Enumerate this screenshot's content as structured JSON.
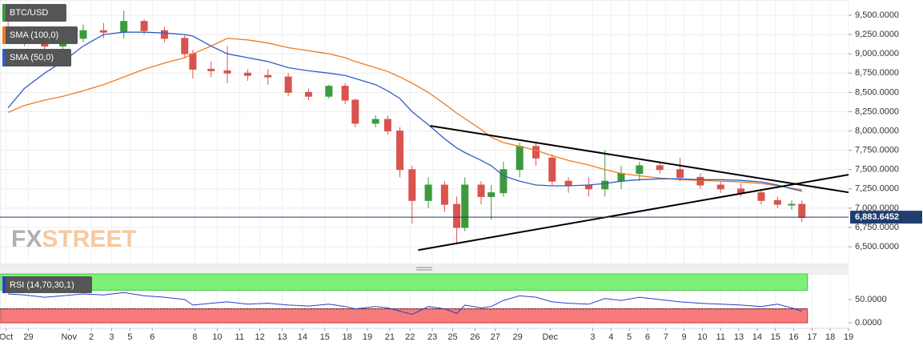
{
  "chart_data": {
    "type": "candlestick",
    "name": "BTC/USD",
    "up_color": "#3c9a3c",
    "down_color": "#d9534f",
    "x": [
      0.1,
      0.9,
      1.9,
      2.8,
      3.8,
      4.8,
      5.8,
      6.8,
      7.8,
      8.8,
      9.2,
      10.1,
      10.9,
      11.9,
      12.9,
      13.9,
      14.9,
      15.9,
      16.7,
      17.2,
      18.2,
      18.8,
      19.4,
      20.0,
      20.8,
      21.6,
      22.2,
      22.6,
      23.4,
      23.9,
      24.5,
      25.3,
      26.1,
      26.9,
      27.7,
      28.7,
      29.5,
      30.3,
      31.2,
      32.2,
      33.2,
      34.2,
      35.2,
      36.2,
      37.2,
      38.0,
      38.7,
      39.2
    ],
    "open": [
      9350,
      9250,
      9150,
      9100,
      9200,
      9300,
      9280,
      9420,
      9300,
      9200,
      9000,
      8800,
      8780,
      8750,
      8720,
      8700,
      8500,
      8450,
      8580,
      8400,
      8100,
      8150,
      8000,
      7500,
      7100,
      7300,
      7050,
      6750,
      7300,
      7150,
      7200,
      7500,
      7800,
      7650,
      7350,
      7300,
      7250,
      7350,
      7450,
      7550,
      7500,
      7400,
      7300,
      7250,
      7200,
      7100,
      7050,
      7050
    ],
    "high": [
      9480,
      9350,
      9250,
      9250,
      9380,
      9400,
      9560,
      9450,
      9350,
      9250,
      9050,
      8900,
      9100,
      8800,
      8800,
      8750,
      8550,
      8600,
      8620,
      8420,
      8200,
      8200,
      8050,
      7550,
      7400,
      7350,
      7150,
      7400,
      7350,
      7300,
      7600,
      7850,
      7850,
      7700,
      7400,
      7400,
      7750,
      7550,
      7600,
      7600,
      7650,
      7450,
      7350,
      7320,
      7250,
      7150,
      7100,
      7100
    ],
    "low": [
      9200,
      9100,
      9050,
      9000,
      9150,
      9200,
      9200,
      9250,
      9150,
      8950,
      8680,
      8700,
      8620,
      8650,
      8600,
      8450,
      8400,
      8420,
      8350,
      8050,
      8050,
      7950,
      7400,
      6800,
      7000,
      6950,
      6550,
      6700,
      7050,
      6850,
      7150,
      7400,
      7550,
      7300,
      7200,
      7150,
      7150,
      7250,
      7350,
      7450,
      7350,
      7250,
      7200,
      7150,
      7050,
      7000,
      6980,
      6820
    ],
    "close": [
      9250,
      9150,
      9100,
      9200,
      9300,
      9280,
      9420,
      9300,
      9200,
      9000,
      8800,
      8780,
      8750,
      8720,
      8700,
      8500,
      8450,
      8580,
      8400,
      8100,
      8150,
      8000,
      7500,
      7100,
      7300,
      7050,
      6750,
      7300,
      7150,
      7200,
      7500,
      7800,
      7650,
      7350,
      7300,
      7250,
      7350,
      7450,
      7550,
      7500,
      7400,
      7300,
      7250,
      7200,
      7100,
      7050,
      7050,
      6880
    ],
    "series": [
      {
        "name": "SMA (100,0)",
        "color": "#f07b22",
        "values": [
          8240,
          8330,
          8400,
          8450,
          8520,
          8600,
          8700,
          8800,
          8880,
          8950,
          9000,
          9100,
          9200,
          9180,
          9140,
          9080,
          9040,
          9000,
          8950,
          8900,
          8820,
          8770,
          8700,
          8620,
          8500,
          8350,
          8230,
          8160,
          8020,
          7920,
          7850,
          7800,
          7750,
          7680,
          7620,
          7560,
          7500,
          7450,
          7420,
          7390,
          7370,
          7360,
          7350,
          7340,
          7320,
          7290,
          7260,
          7240
        ]
      },
      {
        "name": "SMA (50,0)",
        "color": "#2f5fc4",
        "values": [
          8300,
          8550,
          8750,
          8900,
          9100,
          9250,
          9280,
          9280,
          9270,
          9250,
          9230,
          9100,
          9000,
          8950,
          8900,
          8820,
          8780,
          8750,
          8720,
          8680,
          8600,
          8520,
          8420,
          8250,
          8080,
          7900,
          7780,
          7720,
          7620,
          7550,
          7420,
          7350,
          7300,
          7290,
          7290,
          7300,
          7320,
          7350,
          7370,
          7380,
          7380,
          7370,
          7370,
          7360,
          7340,
          7300,
          7250,
          7220
        ]
      }
    ],
    "trend_lines": [
      {
        "x": [
          20.9,
          41.5
        ],
        "values": [
          8067,
          7205
        ]
      },
      {
        "x": [
          20.3,
          41.5
        ],
        "values": [
          6457,
          7434
        ]
      }
    ],
    "last_price": {
      "value": 6883.6452,
      "label": "6,883.6452"
    },
    "xlim": [
      -0.3,
      41.5
    ],
    "ylim": [
      6273,
      9697
    ],
    "yticks": [
      {
        "value": 6500,
        "label": "6,500.0000"
      },
      {
        "value": 6750,
        "label": "6,750.0000"
      },
      {
        "value": 7000,
        "label": "7,000.0000"
      },
      {
        "value": 7250,
        "label": "7,250.0000"
      },
      {
        "value": 7500,
        "label": "7,500.0000"
      },
      {
        "value": 7750,
        "label": "7,750.0000"
      },
      {
        "value": 8000,
        "label": "8,000.0000"
      },
      {
        "value": 8250,
        "label": "8,250.0000"
      },
      {
        "value": 8500,
        "label": "8,500.0000"
      },
      {
        "value": 8750,
        "label": "8,750.0000"
      },
      {
        "value": 9000,
        "label": "9,000.0000"
      },
      {
        "value": 9250,
        "label": "9,250.0000"
      },
      {
        "value": 9500,
        "label": "9,500.0000"
      }
    ],
    "xticks": [
      {
        "value": 0,
        "label": "Oct"
      },
      {
        "value": 1.1,
        "label": "29"
      },
      {
        "value": 3.1,
        "label": "Nov"
      },
      {
        "value": 4.2,
        "label": "2"
      },
      {
        "value": 5.2,
        "label": "3"
      },
      {
        "value": 6.1,
        "label": "5"
      },
      {
        "value": 7.2,
        "label": "6"
      },
      {
        "value": 9.3,
        "label": "8"
      },
      {
        "value": 10.4,
        "label": "10"
      },
      {
        "value": 11.5,
        "label": "11"
      },
      {
        "value": 12.5,
        "label": "12"
      },
      {
        "value": 13.6,
        "label": "13"
      },
      {
        "value": 14.6,
        "label": "14"
      },
      {
        "value": 15.7,
        "label": "15"
      },
      {
        "value": 16.8,
        "label": "18"
      },
      {
        "value": 17.8,
        "label": "19"
      },
      {
        "value": 18.9,
        "label": "21"
      },
      {
        "value": 19.9,
        "label": "22"
      },
      {
        "value": 21.0,
        "label": "23"
      },
      {
        "value": 22.0,
        "label": "25"
      },
      {
        "value": 23.1,
        "label": "26"
      },
      {
        "value": 24.1,
        "label": "27"
      },
      {
        "value": 25.2,
        "label": "29"
      },
      {
        "value": 26.8,
        "label": "Dec"
      },
      {
        "value": 28.9,
        "label": "3"
      },
      {
        "value": 29.8,
        "label": "4"
      },
      {
        "value": 30.7,
        "label": "5"
      },
      {
        "value": 31.6,
        "label": "6"
      },
      {
        "value": 32.5,
        "label": "7"
      },
      {
        "value": 33.4,
        "label": "9"
      },
      {
        "value": 34.3,
        "label": "10"
      },
      {
        "value": 35.2,
        "label": "11"
      },
      {
        "value": 36.1,
        "label": "13"
      },
      {
        "value": 37.0,
        "label": "14"
      },
      {
        "value": 37.9,
        "label": "15"
      },
      {
        "value": 38.8,
        "label": "16"
      },
      {
        "value": 39.7,
        "label": "17"
      },
      {
        "value": 40.6,
        "label": "18"
      },
      {
        "value": 41.5,
        "label": "19"
      }
    ],
    "grid": true,
    "legend": "upper left",
    "watermark": [
      "FX",
      "STREET"
    ],
    "rsi": {
      "name": "RSI (14,70,30,1)",
      "color": "#2b3fc9",
      "levels": [
        30,
        70
      ],
      "level_colors": [
        "#f77b7b",
        "#7ef07a"
      ],
      "values": [
        62,
        60,
        55,
        58,
        62,
        60,
        65,
        58,
        55,
        50,
        38,
        42,
        45,
        40,
        42,
        38,
        36,
        40,
        35,
        30,
        35,
        32,
        25,
        18,
        35,
        30,
        20,
        38,
        32,
        35,
        48,
        58,
        55,
        45,
        42,
        40,
        52,
        48,
        55,
        50,
        45,
        42,
        40,
        38,
        35,
        40,
        32,
        25
      ],
      "ylim": [
        -12,
        105
      ],
      "yticks": [
        {
          "value": 0,
          "label": "0.0000"
        },
        {
          "value": 50,
          "label": "50.0000"
        }
      ]
    }
  }
}
